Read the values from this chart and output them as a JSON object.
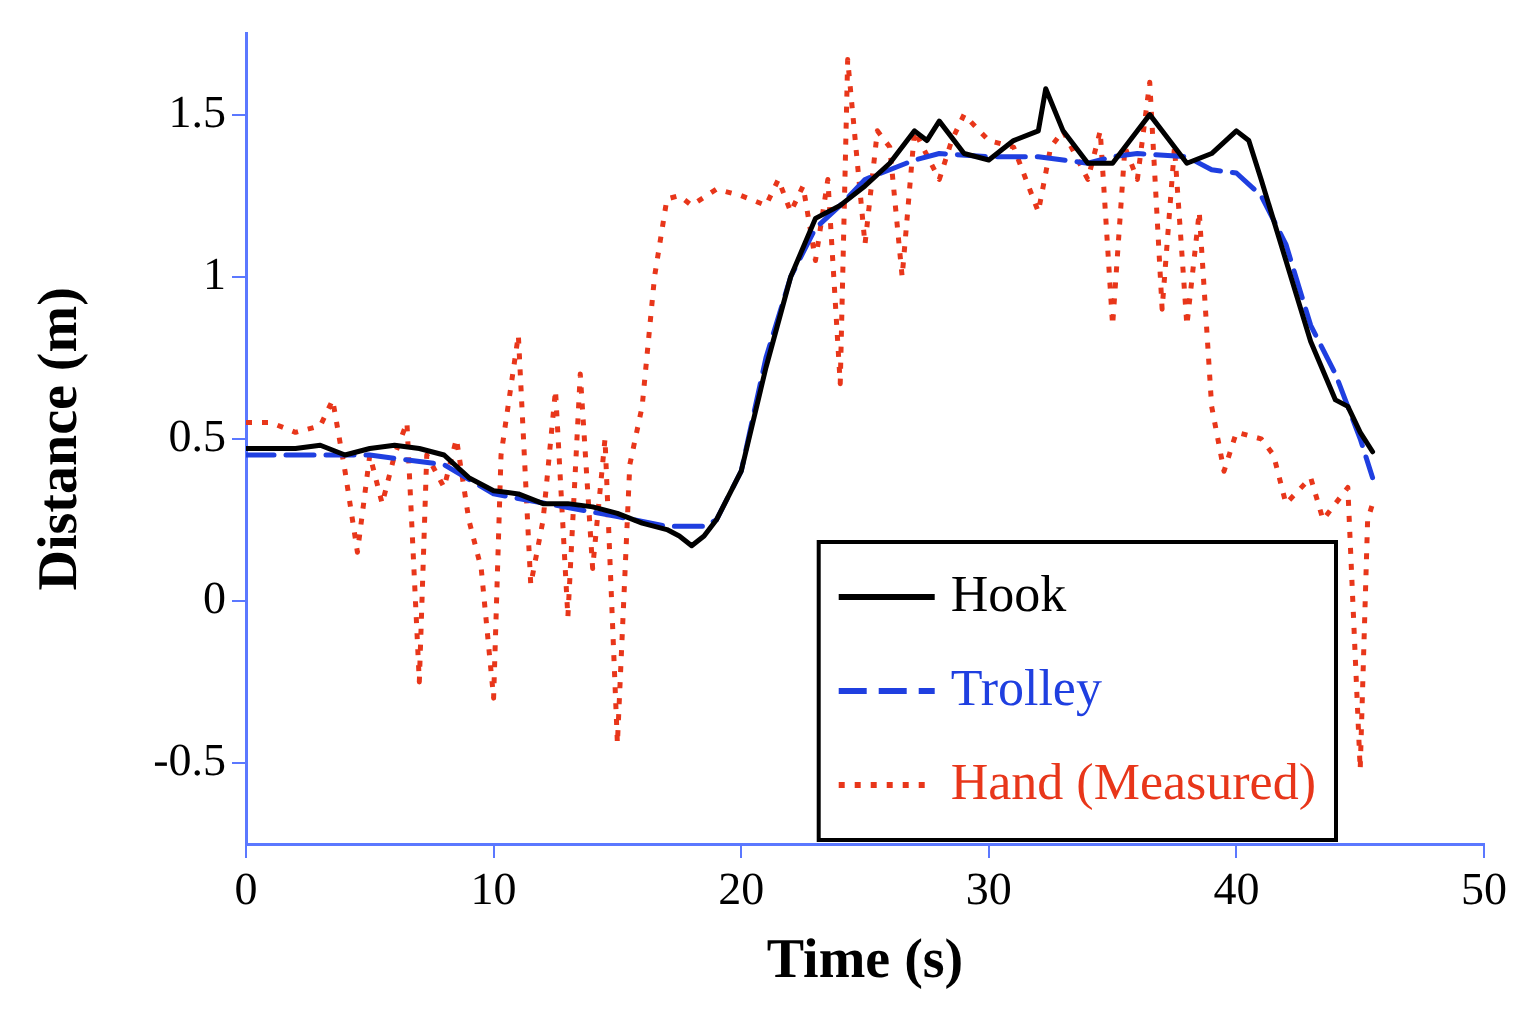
{
  "chart_data": {
    "type": "line",
    "xlabel": "Time (s)",
    "ylabel": "Distance (m)",
    "xlim": [
      0,
      50
    ],
    "xticks": [
      0,
      10,
      20,
      30,
      40,
      50
    ],
    "ylim": [
      -0.75,
      1.75
    ],
    "yticks": [
      -0.5,
      0,
      0.5,
      1,
      1.5
    ],
    "grid": false,
    "legend": "bottom right",
    "marker": "none",
    "series": [
      {
        "name": "Hook",
        "color": "#000000",
        "line_style": "solid",
        "x": [
          0,
          2,
          3,
          4,
          5,
          6,
          7,
          8,
          9,
          10,
          11,
          12,
          13,
          14,
          15,
          16,
          17,
          17.5,
          18,
          18.5,
          19,
          20,
          21,
          22,
          23,
          24,
          25,
          26,
          27,
          27.5,
          28,
          29,
          30,
          31,
          32,
          32.3,
          33,
          34,
          35,
          36,
          36.5,
          37,
          38,
          39,
          40,
          40.5,
          41,
          42,
          43,
          44,
          44.5,
          45,
          45.5
        ],
        "values": [
          0.47,
          0.47,
          0.48,
          0.45,
          0.47,
          0.48,
          0.47,
          0.45,
          0.38,
          0.34,
          0.33,
          0.3,
          0.3,
          0.29,
          0.27,
          0.24,
          0.22,
          0.2,
          0.17,
          0.2,
          0.25,
          0.4,
          0.72,
          1.0,
          1.18,
          1.22,
          1.28,
          1.35,
          1.45,
          1.42,
          1.48,
          1.38,
          1.36,
          1.42,
          1.45,
          1.58,
          1.45,
          1.35,
          1.35,
          1.45,
          1.5,
          1.45,
          1.35,
          1.38,
          1.45,
          1.42,
          1.3,
          1.05,
          0.8,
          0.62,
          0.6,
          0.52,
          0.46
        ]
      },
      {
        "name": "Trolley",
        "color": "#1f3fe0",
        "line_style": "dashed",
        "x": [
          0,
          5,
          8,
          10,
          15,
          17,
          18.5,
          19,
          20,
          21,
          22,
          23,
          24,
          25,
          26,
          27,
          28,
          30,
          32,
          34,
          35,
          36,
          38,
          39,
          40,
          41,
          42,
          43,
          44,
          45,
          45.5
        ],
        "values": [
          0.45,
          0.45,
          0.42,
          0.33,
          0.26,
          0.23,
          0.23,
          0.25,
          0.4,
          0.75,
          1.0,
          1.15,
          1.22,
          1.3,
          1.33,
          1.36,
          1.38,
          1.37,
          1.37,
          1.35,
          1.37,
          1.38,
          1.37,
          1.33,
          1.32,
          1.25,
          1.1,
          0.85,
          0.7,
          0.5,
          0.38
        ]
      },
      {
        "name": "Hand (Measured)",
        "color": "#e8361a",
        "line_style": "dotted",
        "x": [
          0,
          1,
          2,
          3,
          3.5,
          4,
          4.5,
          5,
          5.5,
          6,
          6.5,
          7,
          7.3,
          8,
          8.5,
          9,
          9.5,
          10,
          10.3,
          11,
          11.5,
          12,
          12.5,
          13,
          13.5,
          14,
          14.5,
          15,
          15.5,
          16,
          16.5,
          17,
          17.5,
          18,
          19,
          20,
          21,
          21.5,
          22,
          22.5,
          23,
          23.5,
          24,
          24.3,
          25,
          25.5,
          26,
          26.5,
          27,
          28,
          28.5,
          29,
          30,
          31,
          31.5,
          32,
          32.5,
          33,
          34,
          34.5,
          35,
          35.5,
          36,
          36.5,
          37,
          37.5,
          38,
          38.5,
          39,
          39.5,
          40,
          41,
          41.5,
          42,
          43,
          43.5,
          44,
          44.5,
          45,
          45.3,
          45.5
        ],
        "values": [
          0.55,
          0.55,
          0.52,
          0.54,
          0.62,
          0.4,
          0.15,
          0.45,
          0.3,
          0.45,
          0.55,
          -0.25,
          0.45,
          0.35,
          0.5,
          0.25,
          0.1,
          -0.3,
          0.45,
          0.82,
          0.05,
          0.25,
          0.65,
          -0.05,
          0.7,
          0.1,
          0.5,
          -0.44,
          0.42,
          0.6,
          1.0,
          1.24,
          1.25,
          1.22,
          1.27,
          1.25,
          1.22,
          1.3,
          1.2,
          1.28,
          1.05,
          1.3,
          0.67,
          1.67,
          1.1,
          1.45,
          1.4,
          1.0,
          1.45,
          1.3,
          1.42,
          1.5,
          1.42,
          1.4,
          1.3,
          1.2,
          1.4,
          1.45,
          1.3,
          1.45,
          0.85,
          1.4,
          1.3,
          1.6,
          0.9,
          1.4,
          0.85,
          1.2,
          0.6,
          0.4,
          0.52,
          0.5,
          0.45,
          0.3,
          0.38,
          0.25,
          0.3,
          0.35,
          -0.52,
          0.25,
          0.3
        ]
      }
    ]
  }
}
